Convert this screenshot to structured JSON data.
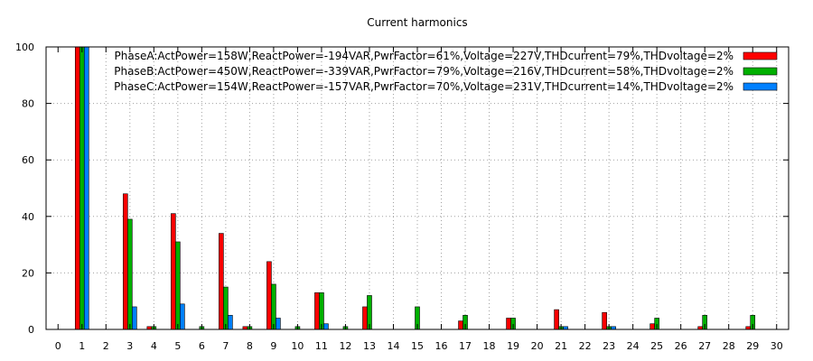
{
  "chart_data": {
    "type": "bar",
    "title": "Current harmonics",
    "xlabel": "",
    "ylabel": "",
    "ylim": [
      0,
      100
    ],
    "xlim": [
      -0.5,
      30.5
    ],
    "yticks": [
      0,
      20,
      40,
      60,
      80,
      100
    ],
    "categories": [
      0,
      1,
      2,
      3,
      4,
      5,
      6,
      7,
      8,
      9,
      10,
      11,
      12,
      13,
      14,
      15,
      16,
      17,
      18,
      19,
      20,
      21,
      22,
      23,
      24,
      25,
      26,
      27,
      28,
      29,
      30
    ],
    "grid": true,
    "legend_position": "top-right",
    "series": [
      {
        "name": "PhaseA:ActPower=158W,ReactPower=-194VAR,PwrFactor=61%,Voltage=227V,THDcurrent=79%,THDvoltage=2%",
        "color": "#ff0000",
        "values": [
          0,
          100,
          0,
          48,
          1,
          41,
          0,
          34,
          1,
          24,
          0,
          13,
          0,
          8,
          0,
          0,
          0,
          3,
          0,
          4,
          0,
          7,
          0,
          6,
          0,
          2,
          0,
          1,
          0,
          1,
          0
        ]
      },
      {
        "name": "PhaseB:ActPower=450W,ReactPower=-339VAR,PwrFactor=79%,Voltage=216V,THDcurrent=58%,THDvoltage=2%",
        "color": "#00b000",
        "values": [
          0,
          100,
          0,
          39,
          1,
          31,
          1,
          15,
          1,
          16,
          1,
          13,
          1,
          12,
          0,
          8,
          0,
          5,
          0,
          4,
          0,
          1,
          0,
          1,
          0,
          4,
          0,
          5,
          0,
          5,
          0
        ]
      },
      {
        "name": "PhaseC:ActPower=154W,ReactPower=-157VAR,PwrFactor=70%,Voltage=231V,THDcurrent=14%,THDvoltage=2%",
        "color": "#0080ff",
        "values": [
          0,
          100,
          0,
          8,
          0,
          9,
          0,
          5,
          0,
          4,
          0,
          2,
          0,
          0,
          0,
          0,
          0,
          0,
          0,
          0,
          0,
          1,
          0,
          1,
          0,
          0,
          0,
          0,
          0,
          0,
          0
        ]
      }
    ]
  }
}
